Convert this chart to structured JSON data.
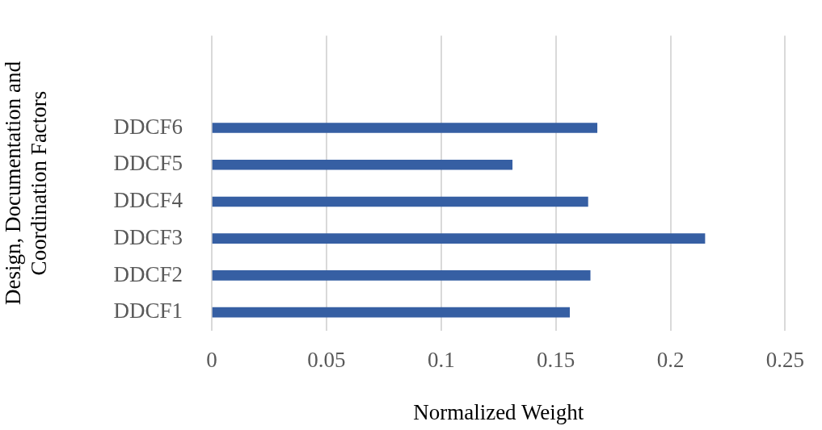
{
  "chart_data": {
    "type": "bar",
    "orientation": "horizontal",
    "xlabel": "Normalized Weight",
    "ylabel": "Design, Documentation and Coordination Factors",
    "categories": [
      null,
      null,
      "DDCF6",
      "DDCF5",
      "DDCF4",
      "DDCF3",
      "DDCF2",
      "DDCF1"
    ],
    "values": [
      null,
      null,
      0.168,
      0.131,
      0.164,
      0.215,
      0.165,
      0.156
    ],
    "color": "#365fa3",
    "xlim": [
      0,
      0.25
    ],
    "xticks": [
      0,
      0.05,
      0.1,
      0.15,
      0.2,
      0.25
    ],
    "grid": "x",
    "legend": false
  }
}
